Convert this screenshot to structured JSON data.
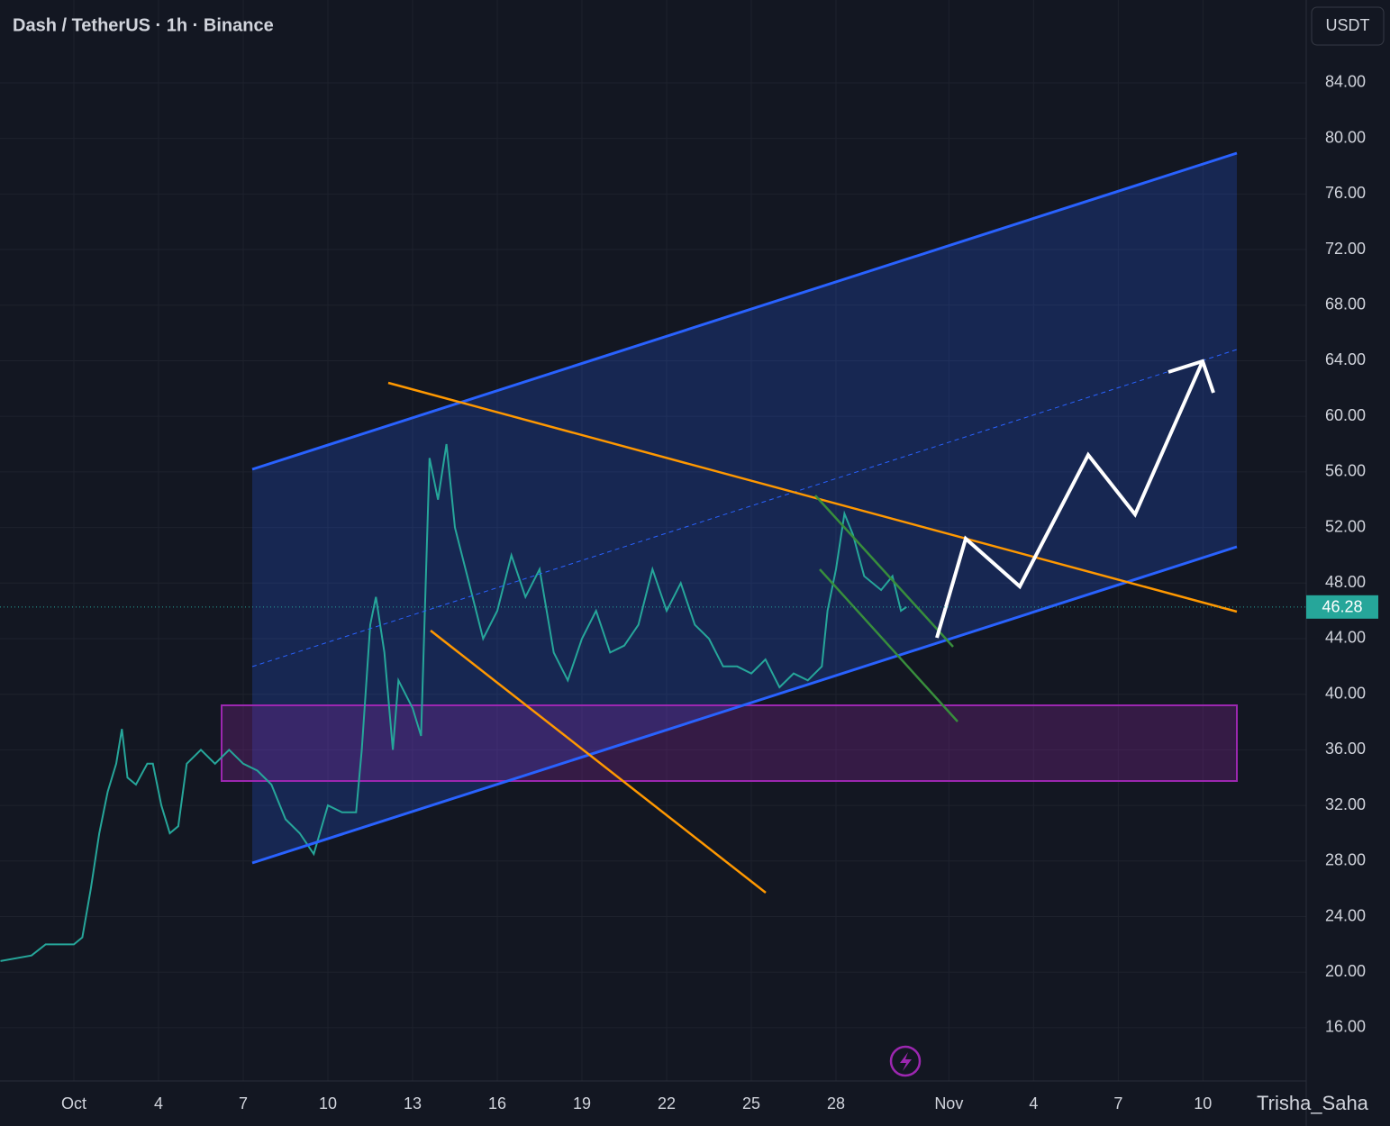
{
  "chart_data": {
    "type": "line",
    "title": "Dash / TetherUS · 1h · Binance",
    "currency": "USDT",
    "watermark": "Trisha_Saha",
    "series": [
      {
        "name": "DASHUSDT",
        "color": "#26a69a",
        "x": [
          -2.6,
          -1.5,
          -1,
          0,
          0.3,
          0.6,
          0.9,
          1.2,
          1.5,
          1.7,
          1.9,
          2.2,
          2.6,
          2.8,
          3.1,
          3.4,
          3.7,
          4,
          4.5,
          5,
          5.5,
          6,
          6.5,
          7,
          7.5,
          8,
          8.5,
          9,
          9.5,
          10,
          10.2,
          10.5,
          10.7,
          11,
          11.3,
          11.5,
          12,
          12.3,
          12.6,
          12.9,
          13.2,
          13.5,
          14,
          14.5,
          15,
          15.5,
          16,
          16.5,
          17,
          17.5,
          18,
          18.5,
          19,
          19.5,
          20,
          20.5,
          21,
          21.5,
          22,
          22.5,
          23,
          23.5,
          24,
          24.5,
          25,
          25.5,
          26,
          26.5,
          26.7,
          27,
          27.3,
          27.6,
          28,
          28.6,
          29,
          29.3,
          29.5
        ],
        "values": [
          20.8,
          21.2,
          22,
          22,
          22.5,
          26,
          30,
          33,
          35,
          37.5,
          34,
          33.5,
          35,
          35,
          32,
          30,
          30.5,
          35,
          36,
          35,
          36,
          35,
          34.5,
          33.5,
          31,
          30,
          28.5,
          32,
          31.5,
          31.5,
          36,
          45,
          47,
          43,
          36,
          41,
          39,
          37,
          57,
          54,
          58,
          52,
          48,
          44,
          46,
          50,
          47,
          49,
          43,
          41,
          44,
          46,
          43,
          43.5,
          45,
          49,
          46,
          48,
          45,
          44,
          42,
          42,
          41.5,
          42.5,
          40.5,
          41.5,
          41,
          42,
          46,
          49,
          53,
          51.5,
          48.5,
          47.5,
          48.5,
          46,
          46.28
        ]
      }
    ],
    "last_price": 46.28,
    "xlim": [
      -2.617,
      43.66
    ],
    "ylim": [
      12.17,
      89.96
    ],
    "xticks": [
      {
        "value": 0,
        "label": "Oct"
      },
      3,
      6,
      9,
      12,
      15,
      18,
      21,
      24,
      27,
      {
        "value": 31,
        "label": "Nov"
      },
      {
        "value": 34,
        "label": "4"
      },
      {
        "value": 37,
        "label": "7"
      },
      {
        "value": 40,
        "label": "10"
      }
    ],
    "xtick_labels": [
      "Oct",
      "4",
      "7",
      "10",
      "13",
      "16",
      "19",
      "22",
      "25",
      "28",
      "Nov",
      "4",
      "7",
      "10"
    ],
    "yticks": [
      {
        "value": 16,
        "label": "16.00"
      },
      {
        "value": 20,
        "label": "20.00"
      },
      {
        "value": 24,
        "label": "24.00"
      },
      {
        "value": 28,
        "label": "28.00"
      },
      {
        "value": 32,
        "label": "32.00"
      },
      {
        "value": 36,
        "label": "36.00"
      },
      {
        "value": 40,
        "label": "40.00"
      },
      {
        "value": 44,
        "label": "44.00"
      },
      {
        "value": 48,
        "label": "48.00"
      },
      {
        "value": 52,
        "label": "52.00"
      },
      {
        "value": 56,
        "label": "56.00"
      },
      {
        "value": 60,
        "label": "60.00"
      },
      {
        "value": 64,
        "label": "64.00"
      },
      {
        "value": 68,
        "label": "68.00"
      },
      {
        "value": 72,
        "label": "72.00"
      },
      {
        "value": 76,
        "label": "76.00"
      },
      {
        "value": 80,
        "label": "80.00"
      },
      {
        "value": 84,
        "label": "84.00"
      }
    ],
    "grid": true
  }
}
